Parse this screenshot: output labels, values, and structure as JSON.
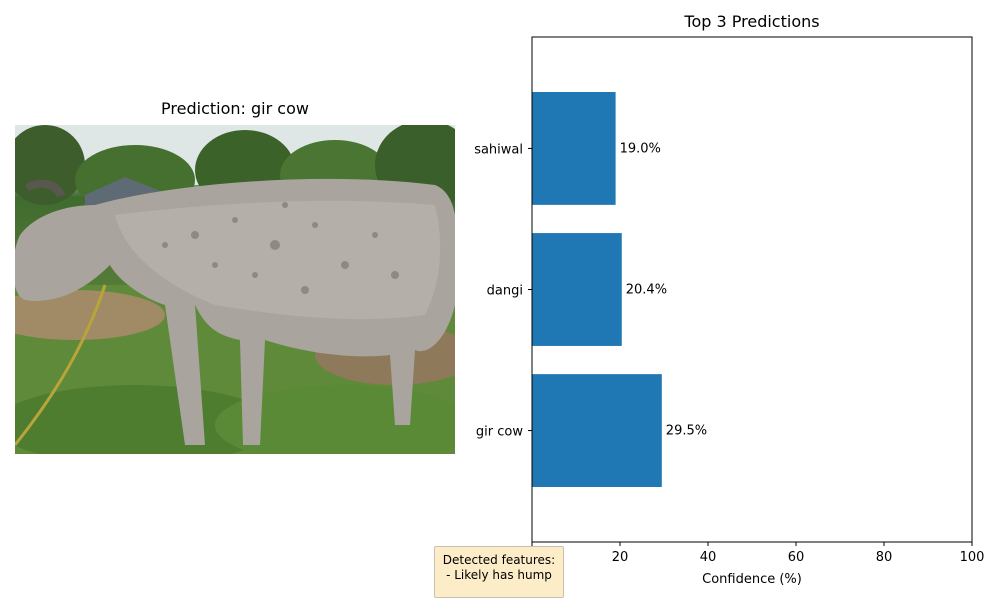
{
  "photo": {
    "title": "Prediction: gir cow",
    "icon": "cow-photo"
  },
  "chart_data": {
    "type": "bar",
    "orientation": "horizontal",
    "title": "Top 3 Predictions",
    "xlabel": "Confidence (%)",
    "ylabel": "",
    "xlim": [
      0,
      100
    ],
    "xticks": [
      0,
      20,
      40,
      60,
      80,
      100
    ],
    "categories": [
      "gir cow",
      "dangi",
      "sahiwal"
    ],
    "values": [
      29.5,
      20.4,
      19.0
    ],
    "value_labels": [
      "29.5%",
      "20.4%",
      "19.0%"
    ],
    "bar_color": "#1f77b4",
    "grid": false
  },
  "features": {
    "heading": "Detected features:",
    "items": [
      "- Likely has hump"
    ]
  }
}
